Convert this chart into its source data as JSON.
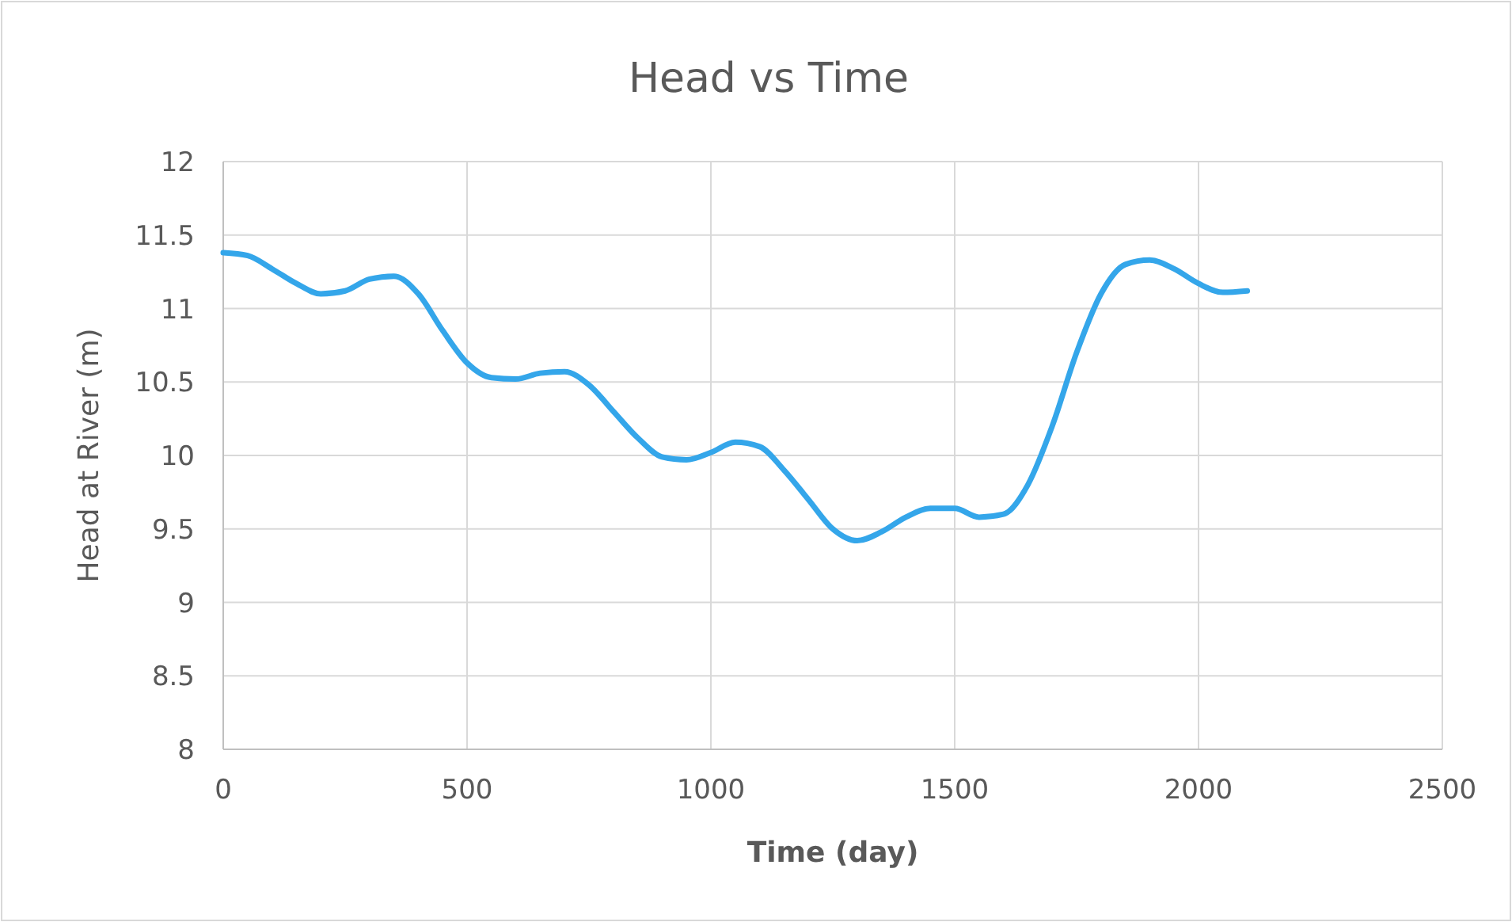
{
  "chart_data": {
    "type": "line",
    "title": "Head vs Time",
    "xlabel": "Time (day)",
    "ylabel": "Head at River (m)",
    "x": [
      0,
      50,
      100,
      150,
      200,
      250,
      300,
      350,
      400,
      450,
      500,
      550,
      600,
      650,
      700,
      750,
      800,
      850,
      900,
      950,
      1000,
      1050,
      1100,
      1150,
      1200,
      1250,
      1300,
      1350,
      1400,
      1450,
      1500,
      1550,
      1600,
      1650,
      1700,
      1750,
      1800,
      1850,
      1900,
      1950,
      2000,
      2050,
      2100
    ],
    "series": [
      {
        "color": "#34a6ea",
        "values": [
          11.38,
          11.36,
          11.27,
          11.17,
          11.1,
          11.12,
          11.2,
          11.22,
          11.1,
          10.85,
          10.63,
          10.53,
          10.52,
          10.56,
          10.57,
          10.48,
          10.3,
          10.12,
          9.99,
          9.97,
          10.02,
          10.09,
          10.06,
          9.9,
          9.7,
          9.5,
          9.42,
          9.48,
          9.58,
          9.64,
          9.64,
          9.58,
          9.6,
          9.8,
          10.2,
          10.7,
          11.1,
          11.3,
          11.33,
          11.27,
          11.17,
          11.11,
          11.12
        ]
      }
    ],
    "xlim": [
      0,
      2500
    ],
    "xticks": [
      0,
      500,
      1000,
      1500,
      2000,
      2500
    ],
    "ylim": [
      8,
      12
    ],
    "yticks": [
      8,
      8.5,
      9,
      9.5,
      10,
      10.5,
      11,
      11.5,
      12
    ],
    "grid": true,
    "marker": "none",
    "line_style": "solid"
  }
}
